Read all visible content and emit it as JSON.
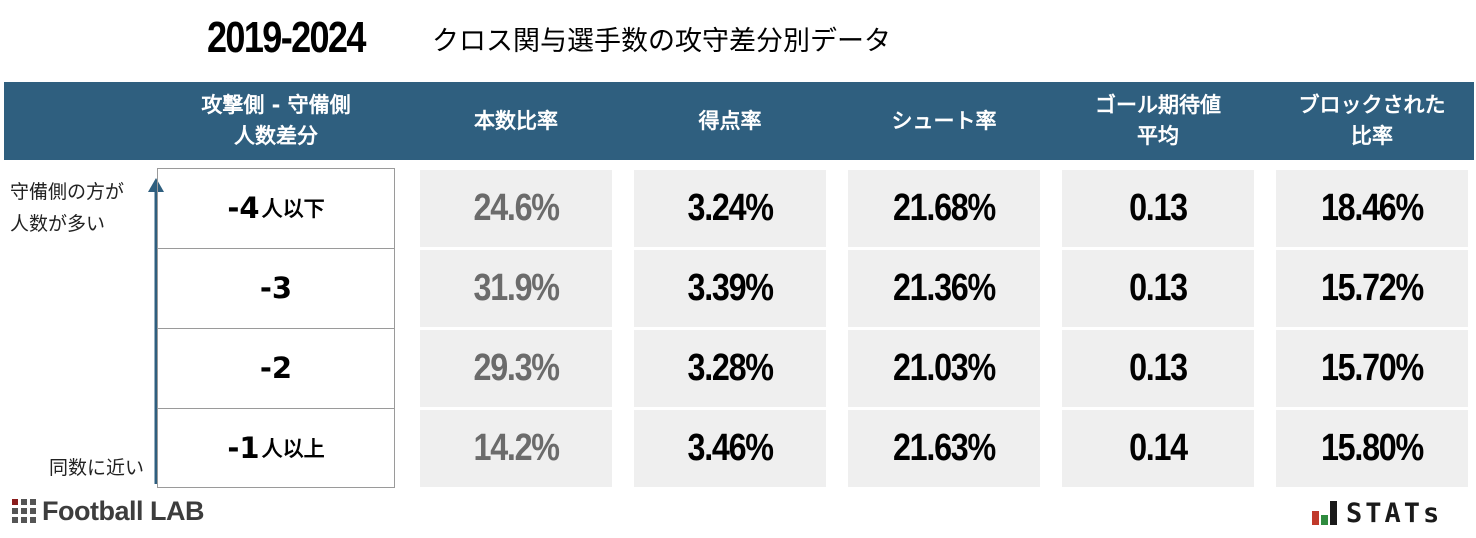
{
  "title": {
    "years": "2019-2024",
    "subtitle": "クロス関与選手数の攻守差分別データ"
  },
  "axis": {
    "top_line1": "守備側の方が",
    "top_line2": "人数が多い",
    "bottom": "同数に近い"
  },
  "chart_data": {
    "type": "table",
    "columns": [
      {
        "line1": "攻撃側 - 守備側",
        "line2": "人数差分"
      },
      {
        "line1": "本数比率",
        "line2": ""
      },
      {
        "line1": "得点率",
        "line2": ""
      },
      {
        "line1": "シュート率",
        "line2": ""
      },
      {
        "line1": "ゴール期待値",
        "line2": "平均"
      },
      {
        "line1": "ブロックされた",
        "line2": "比率"
      }
    ],
    "rows": [
      {
        "label": "-4",
        "suffix": "人以下",
        "values": [
          "24.6%",
          "3.24%",
          "21.68%",
          "0.13",
          "18.46%"
        ]
      },
      {
        "label": "-3",
        "suffix": "",
        "values": [
          "31.9%",
          "3.39%",
          "21.36%",
          "0.13",
          "15.72%"
        ]
      },
      {
        "label": "-2",
        "suffix": "",
        "values": [
          "29.3%",
          "3.28%",
          "21.03%",
          "0.13",
          "15.70%"
        ]
      },
      {
        "label": "-1",
        "suffix": "人以上",
        "values": [
          "14.2%",
          "3.46%",
          "21.63%",
          "0.14",
          "15.80%"
        ]
      }
    ]
  },
  "branding": {
    "left_logo": "Football LAB",
    "right_logo": "STATs",
    "left_icon": "grid-icon",
    "right_icon": "bar-chart-icon"
  },
  "colors": {
    "header_bg": "#2f5f7f",
    "cell_bg": "#efefef",
    "first_col_value": "#6b6b6b",
    "arrow": "#2f5f7f"
  }
}
